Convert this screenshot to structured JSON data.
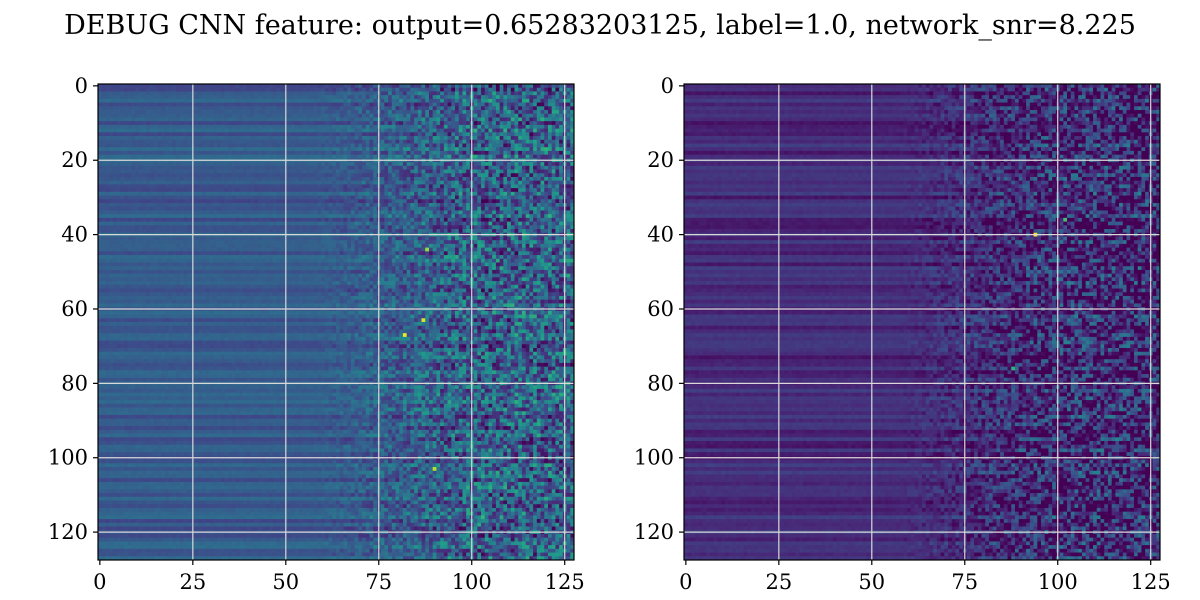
{
  "figure": {
    "title": "DEBUG CNN feature: output=0.65283203125, label=1.0, network_snr=8.225"
  },
  "colormap": {
    "name": "viridis",
    "stops": [
      "#440154",
      "#482878",
      "#3e4989",
      "#31688e",
      "#26828e",
      "#1f9e89",
      "#35b779",
      "#6ece58",
      "#b5de2b",
      "#fde725"
    ]
  },
  "chart_data": [
    {
      "type": "heatmap",
      "name": "left",
      "rows": 128,
      "cols": 128,
      "xlim": [
        0,
        127
      ],
      "ylim": [
        127,
        0
      ],
      "xticks": [
        0,
        25,
        50,
        75,
        100,
        125
      ],
      "yticks": [
        0,
        20,
        40,
        60,
        80,
        100,
        120
      ],
      "grid": true,
      "grid_color": "#d9d9d9",
      "value_range": [
        0,
        1
      ],
      "description_levels": {
        "low_region_cols": [
          0,
          50
        ],
        "noisy_region_cols": [
          75,
          127
        ],
        "base_level": 0.28,
        "hotspots": [
          {
            "row": 63,
            "col": 87,
            "value": 0.95
          },
          {
            "row": 67,
            "col": 82,
            "value": 0.98
          },
          {
            "row": 103,
            "col": 90,
            "value": 0.9
          },
          {
            "row": 44,
            "col": 88,
            "value": 0.85
          }
        ]
      }
    },
    {
      "type": "heatmap",
      "name": "right",
      "rows": 128,
      "cols": 128,
      "xlim": [
        0,
        127
      ],
      "ylim": [
        127,
        0
      ],
      "xticks": [
        0,
        25,
        50,
        75,
        100,
        125
      ],
      "yticks": [
        0,
        20,
        40,
        60,
        80,
        100,
        120
      ],
      "grid": true,
      "grid_color": "#d9d9d9",
      "value_range": [
        0,
        1
      ],
      "description_levels": {
        "low_region_cols": [
          0,
          50
        ],
        "noisy_region_cols": [
          75,
          127
        ],
        "base_level": 0.12,
        "hotspots": [
          {
            "row": 40,
            "col": 94,
            "value": 1.0
          },
          {
            "row": 36,
            "col": 102,
            "value": 0.7
          },
          {
            "row": 76,
            "col": 88,
            "value": 0.65
          }
        ]
      }
    }
  ]
}
